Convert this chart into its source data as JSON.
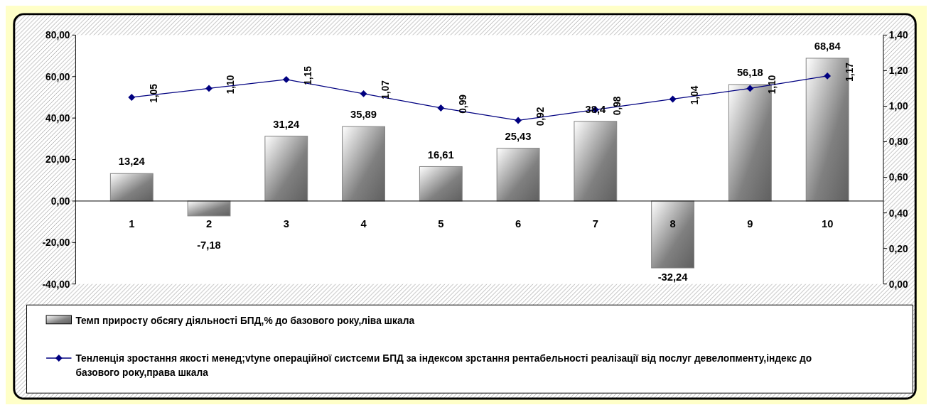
{
  "chart_data": {
    "type": "bar",
    "categories": [
      "1",
      "2",
      "3",
      "4",
      "5",
      "6",
      "7",
      "8",
      "9",
      "10"
    ],
    "series": [
      {
        "name": "Темп приросту обсягу діяльності БПД,% до базового року,ліва шкала",
        "color": "#808080",
        "values": [
          13.24,
          -7.18,
          31.24,
          35.89,
          16.61,
          25.43,
          38.4,
          -32.24,
          56.18,
          68.84
        ],
        "value_labels": [
          "13,24",
          "-7,18",
          "31,24",
          "35,89",
          "16,61",
          "25,43",
          "38,4",
          "-32,24",
          "56,18",
          "68,84"
        ]
      },
      {
        "name": "Тенленція зростання якості менед;vtyne  операційної систсеми БПД  за індексом зрстання рентабельності реалізації  від послуг девелопменту,індекс до базового року,права шкала",
        "type": "line",
        "axis": "y2",
        "color": "#000080",
        "marker": "diamond",
        "values": [
          1.05,
          1.1,
          1.15,
          1.07,
          0.99,
          0.92,
          0.98,
          1.04,
          1.1,
          1.17
        ],
        "value_labels": [
          "1,05",
          "1,10",
          "1,15",
          "1,07",
          "0,99",
          "0,92",
          "0,98",
          "1,04",
          "1,10",
          "1,17"
        ]
      }
    ],
    "ylim": [
      -40,
      80
    ],
    "yticks": [
      {
        "value": -40,
        "label": "-40,00"
      },
      {
        "value": -20,
        "label": "-20,00"
      },
      {
        "value": 0,
        "label": "0,00"
      },
      {
        "value": 20,
        "label": "20,00"
      },
      {
        "value": 40,
        "label": "40,00"
      },
      {
        "value": 60,
        "label": "60,00"
      },
      {
        "value": 80,
        "label": "80,00"
      }
    ],
    "y2lim": [
      0,
      1.4
    ],
    "y2ticks": [
      {
        "value": 0,
        "label": "0,00"
      },
      {
        "value": 0.2,
        "label": "0,20"
      },
      {
        "value": 0.4,
        "label": "0,40"
      },
      {
        "value": 0.6,
        "label": "0,60"
      },
      {
        "value": 0.8,
        "label": "0,80"
      },
      {
        "value": 1.0,
        "label": "1,00"
      },
      {
        "value": 1.2,
        "label": "1,20"
      },
      {
        "value": 1.4,
        "label": "1,40"
      }
    ],
    "grid": false,
    "legend": "bottom"
  }
}
